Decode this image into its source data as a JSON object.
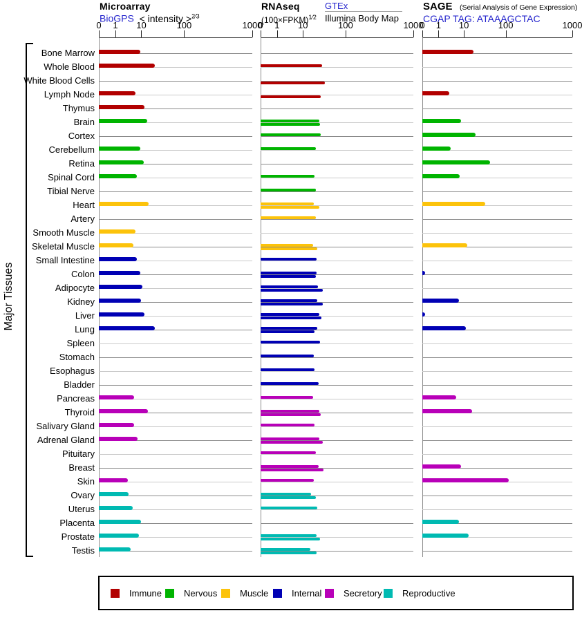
{
  "header": {
    "microarray": {
      "title": "Microarray",
      "link": "BioGPS",
      "scale": "< intensity >",
      "scale_exp": "2⁄3"
    },
    "rnaseq": {
      "title": "RNAseq",
      "scale": "(100×FPKM)",
      "scale_exp": "1⁄2",
      "link": "GTEx",
      "sublabel": "Illumina Body Map"
    },
    "sage": {
      "title": "SAGE",
      "subtitle": "(Serial Analysis of Gene Expression)",
      "link": "CGAP TAG: ATAAAGCTAC"
    }
  },
  "y_axis_label": "Major Tissues",
  "legend": [
    {
      "label": "Immune",
      "color": "#b20000"
    },
    {
      "label": "Nervous",
      "color": "#00b400"
    },
    {
      "label": "Muscle",
      "color": "#fcc30b"
    },
    {
      "label": "Internal",
      "color": "#0000b4"
    },
    {
      "label": "Secretory",
      "color": "#b800b8"
    },
    {
      "label": "Reproductive",
      "color": "#00bab2"
    }
  ],
  "chart_data": {
    "type": "bar",
    "orientation": "horizontal",
    "x_scale": "compressed log-like axis with ticks 0,1,10,100,1000",
    "x_ticks": [
      "0",
      "1",
      "10",
      "100",
      "1000"
    ],
    "panels": [
      {
        "id": "microarray",
        "label": "Microarray (BioGPS, intensity^2/3)",
        "bars_per_row": 1
      },
      {
        "id": "rnaseq",
        "label": "RNAseq (upper bar: GTEx, lower bar: Illumina Body Map, (100×FPKM)^1/2)",
        "bars_per_row": 2
      },
      {
        "id": "sage",
        "label": "SAGE CGAP TAG: ATAAAGCTAC",
        "bars_per_row": 1
      }
    ],
    "category_colors": {
      "Immune": "#b20000",
      "Nervous": "#00b400",
      "Muscle": "#fcc30b",
      "Internal": "#0000b4",
      "Secretory": "#b800b8",
      "Reproductive": "#00bab2"
    },
    "tissues": [
      {
        "name": "Bone Marrow",
        "category": "Immune",
        "microarray": 9,
        "rnaseq_gtex": null,
        "rnaseq_illumina": null,
        "sage": 17
      },
      {
        "name": "Whole Blood",
        "category": "Immune",
        "microarray": 21,
        "rnaseq_gtex": 28,
        "rnaseq_illumina": null,
        "sage": null
      },
      {
        "name": "White Blood Cells",
        "category": "Immune",
        "microarray": null,
        "rnaseq_gtex": null,
        "rnaseq_illumina": 33,
        "sage": null
      },
      {
        "name": "Lymph Node",
        "category": "Immune",
        "microarray": 6,
        "rnaseq_gtex": null,
        "rnaseq_illumina": 26,
        "sage": 2.7
      },
      {
        "name": "Thymus",
        "category": "Immune",
        "microarray": 12,
        "rnaseq_gtex": null,
        "rnaseq_illumina": null,
        "sage": null
      },
      {
        "name": "Brain",
        "category": "Nervous",
        "microarray": 13.5,
        "rnaseq_gtex": 24,
        "rnaseq_illumina": 25,
        "sage": 7.5
      },
      {
        "name": "Cortex",
        "category": "Nervous",
        "microarray": null,
        "rnaseq_gtex": 26,
        "rnaseq_illumina": null,
        "sage": 19
      },
      {
        "name": "Cerebellum",
        "category": "Nervous",
        "microarray": 9,
        "rnaseq_gtex": 20,
        "rnaseq_illumina": null,
        "sage": 3
      },
      {
        "name": "Retina",
        "category": "Nervous",
        "microarray": 11.5,
        "rnaseq_gtex": null,
        "rnaseq_illumina": null,
        "sage": 43
      },
      {
        "name": "Spinal Cord",
        "category": "Nervous",
        "microarray": 6.8,
        "rnaseq_gtex": 19,
        "rnaseq_illumina": null,
        "sage": 7
      },
      {
        "name": "Tibial Nerve",
        "category": "Nervous",
        "microarray": null,
        "rnaseq_gtex": 20,
        "rnaseq_illumina": null,
        "sage": null
      },
      {
        "name": "Heart",
        "category": "Muscle",
        "microarray": 15,
        "rnaseq_gtex": 18,
        "rnaseq_illumina": 24,
        "sage": 32
      },
      {
        "name": "Artery",
        "category": "Muscle",
        "microarray": null,
        "rnaseq_gtex": 20,
        "rnaseq_illumina": null,
        "sage": null
      },
      {
        "name": "Smooth Muscle",
        "category": "Muscle",
        "microarray": 5.8,
        "rnaseq_gtex": null,
        "rnaseq_illumina": null,
        "sage": null
      },
      {
        "name": "Skeletal Muscle",
        "category": "Muscle",
        "microarray": 5,
        "rnaseq_gtex": 17.5,
        "rnaseq_illumina": 21.5,
        "sage": 12
      },
      {
        "name": "Small Intestine",
        "category": "Internal",
        "microarray": 6.8,
        "rnaseq_gtex": 21,
        "rnaseq_illumina": null,
        "sage": null
      },
      {
        "name": "Colon",
        "category": "Internal",
        "microarray": 9.4,
        "rnaseq_gtex": 21,
        "rnaseq_illumina": 20,
        "sage": 0.15
      },
      {
        "name": "Adipocyte",
        "category": "Internal",
        "microarray": 10.5,
        "rnaseq_gtex": 22.5,
        "rnaseq_illumina": 29.5,
        "sage": null
      },
      {
        "name": "Kidney",
        "category": "Internal",
        "microarray": 9.5,
        "rnaseq_gtex": 21.5,
        "rnaseq_illumina": 29.5,
        "sage": 6.4
      },
      {
        "name": "Liver",
        "category": "Internal",
        "microarray": 12,
        "rnaseq_gtex": 24,
        "rnaseq_illumina": 27,
        "sage": 0.15
      },
      {
        "name": "Lung",
        "category": "Internal",
        "microarray": 21,
        "rnaseq_gtex": 21.5,
        "rnaseq_illumina": 18.5,
        "sage": 11
      },
      {
        "name": "Spleen",
        "category": "Internal",
        "microarray": null,
        "rnaseq_gtex": 25,
        "rnaseq_illumina": null,
        "sage": null
      },
      {
        "name": "Stomach",
        "category": "Internal",
        "microarray": null,
        "rnaseq_gtex": 18,
        "rnaseq_illumina": null,
        "sage": null
      },
      {
        "name": "Esophagus",
        "category": "Internal",
        "microarray": null,
        "rnaseq_gtex": 19,
        "rnaseq_illumina": null,
        "sage": null
      },
      {
        "name": "Bladder",
        "category": "Internal",
        "microarray": null,
        "rnaseq_gtex": 23,
        "rnaseq_illumina": null,
        "sage": null
      },
      {
        "name": "Pancreas",
        "category": "Secretory",
        "microarray": 5.4,
        "rnaseq_gtex": 17.5,
        "rnaseq_illumina": null,
        "sage": 5
      },
      {
        "name": "Thyroid",
        "category": "Secretory",
        "microarray": 14.5,
        "rnaseq_gtex": 24,
        "rnaseq_illumina": 26,
        "sage": 16
      },
      {
        "name": "Salivary Gland",
        "category": "Secretory",
        "microarray": 5.4,
        "rnaseq_gtex": 19,
        "rnaseq_illumina": null,
        "sage": null
      },
      {
        "name": "Adrenal Gland",
        "category": "Secretory",
        "microarray": 7,
        "rnaseq_gtex": 24,
        "rnaseq_illumina": 29.5,
        "sage": null
      },
      {
        "name": "Pituitary",
        "category": "Secretory",
        "microarray": null,
        "rnaseq_gtex": 20,
        "rnaseq_illumina": null,
        "sage": null
      },
      {
        "name": "Breast",
        "category": "Secretory",
        "microarray": null,
        "rnaseq_gtex": 23,
        "rnaseq_illumina": 30,
        "sage": 7.5
      },
      {
        "name": "Skin",
        "category": "Secretory",
        "microarray": 3,
        "rnaseq_gtex": 18,
        "rnaseq_illumina": null,
        "sage": 110
      },
      {
        "name": "Ovary",
        "category": "Reproductive",
        "microarray": 3.2,
        "rnaseq_gtex": 15.5,
        "rnaseq_illumina": 20,
        "sage": null
      },
      {
        "name": "Uterus",
        "category": "Reproductive",
        "microarray": 4.7,
        "rnaseq_gtex": 21.5,
        "rnaseq_illumina": null,
        "sage": null
      },
      {
        "name": "Placenta",
        "category": "Reproductive",
        "microarray": 9.7,
        "rnaseq_gtex": null,
        "rnaseq_illumina": null,
        "sage": 6.5
      },
      {
        "name": "Prostate",
        "category": "Reproductive",
        "microarray": 8,
        "rnaseq_gtex": 21,
        "rnaseq_illumina": 25,
        "sage": 13
      },
      {
        "name": "Testis",
        "category": "Reproductive",
        "microarray": 3.9,
        "rnaseq_gtex": 15,
        "rnaseq_illumina": 21,
        "sage": null
      }
    ]
  }
}
